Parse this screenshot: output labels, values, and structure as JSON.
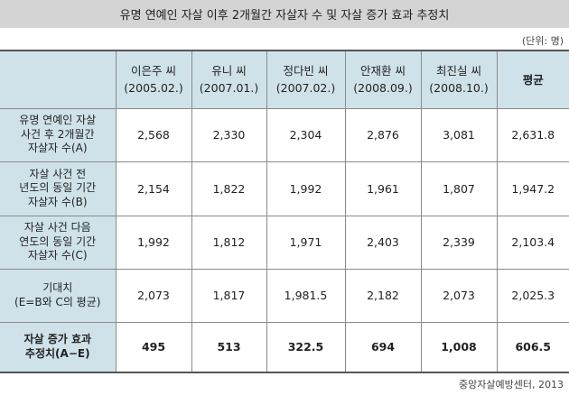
{
  "title": "유명 연예인 자살 이후 2개월간 자살자 수 및 자살 증가 효과 추정치",
  "unit_note": "(단위: 명)",
  "source": "중앙자살예방센터, 2013",
  "columns": [
    {
      "name": "이은주 씨",
      "date": "(2005.02.)"
    },
    {
      "name": "유니 씨",
      "date": "(2007.01.)"
    },
    {
      "name": "정다빈 씨",
      "date": "(2007.02.)"
    },
    {
      "name": "안재환 씨",
      "date": "(2008.09.)"
    },
    {
      "name": "최진실 씨",
      "date": "(2008.10.)"
    },
    {
      "name": "평균",
      "date": ""
    }
  ],
  "rows": [
    {
      "label": [
        "유명 연예인 자살",
        "사건 후 2개월간",
        "자살자 수(A)"
      ],
      "values": [
        "2,568",
        "2,330",
        "2,304",
        "2,876",
        "3,081",
        "2,631.8"
      ]
    },
    {
      "label": [
        "자살 사건 전",
        "년도의 동일 기간",
        "자살자 수(B)"
      ],
      "values": [
        "2,154",
        "1,822",
        "1,992",
        "1,961",
        "1,807",
        "1,947.2"
      ]
    },
    {
      "label": [
        "자살 사건 다음",
        "연도의 동일 기간",
        "자살자 수(C)"
      ],
      "values": [
        "1,992",
        "1,812",
        "1,971",
        "2,403",
        "2,339",
        "2,103.4"
      ]
    },
    {
      "label": [
        "기대치",
        "(E=B와 C의 평균)"
      ],
      "values": [
        "2,073",
        "1,817",
        "1,981.5",
        "2,182",
        "2,073",
        "2,025.3"
      ]
    },
    {
      "label": [
        "자살 증가 효과",
        "추정치(A−E)"
      ],
      "values": [
        "495",
        "513",
        "322.5",
        "694",
        "1,008",
        "606.5"
      ]
    }
  ]
}
